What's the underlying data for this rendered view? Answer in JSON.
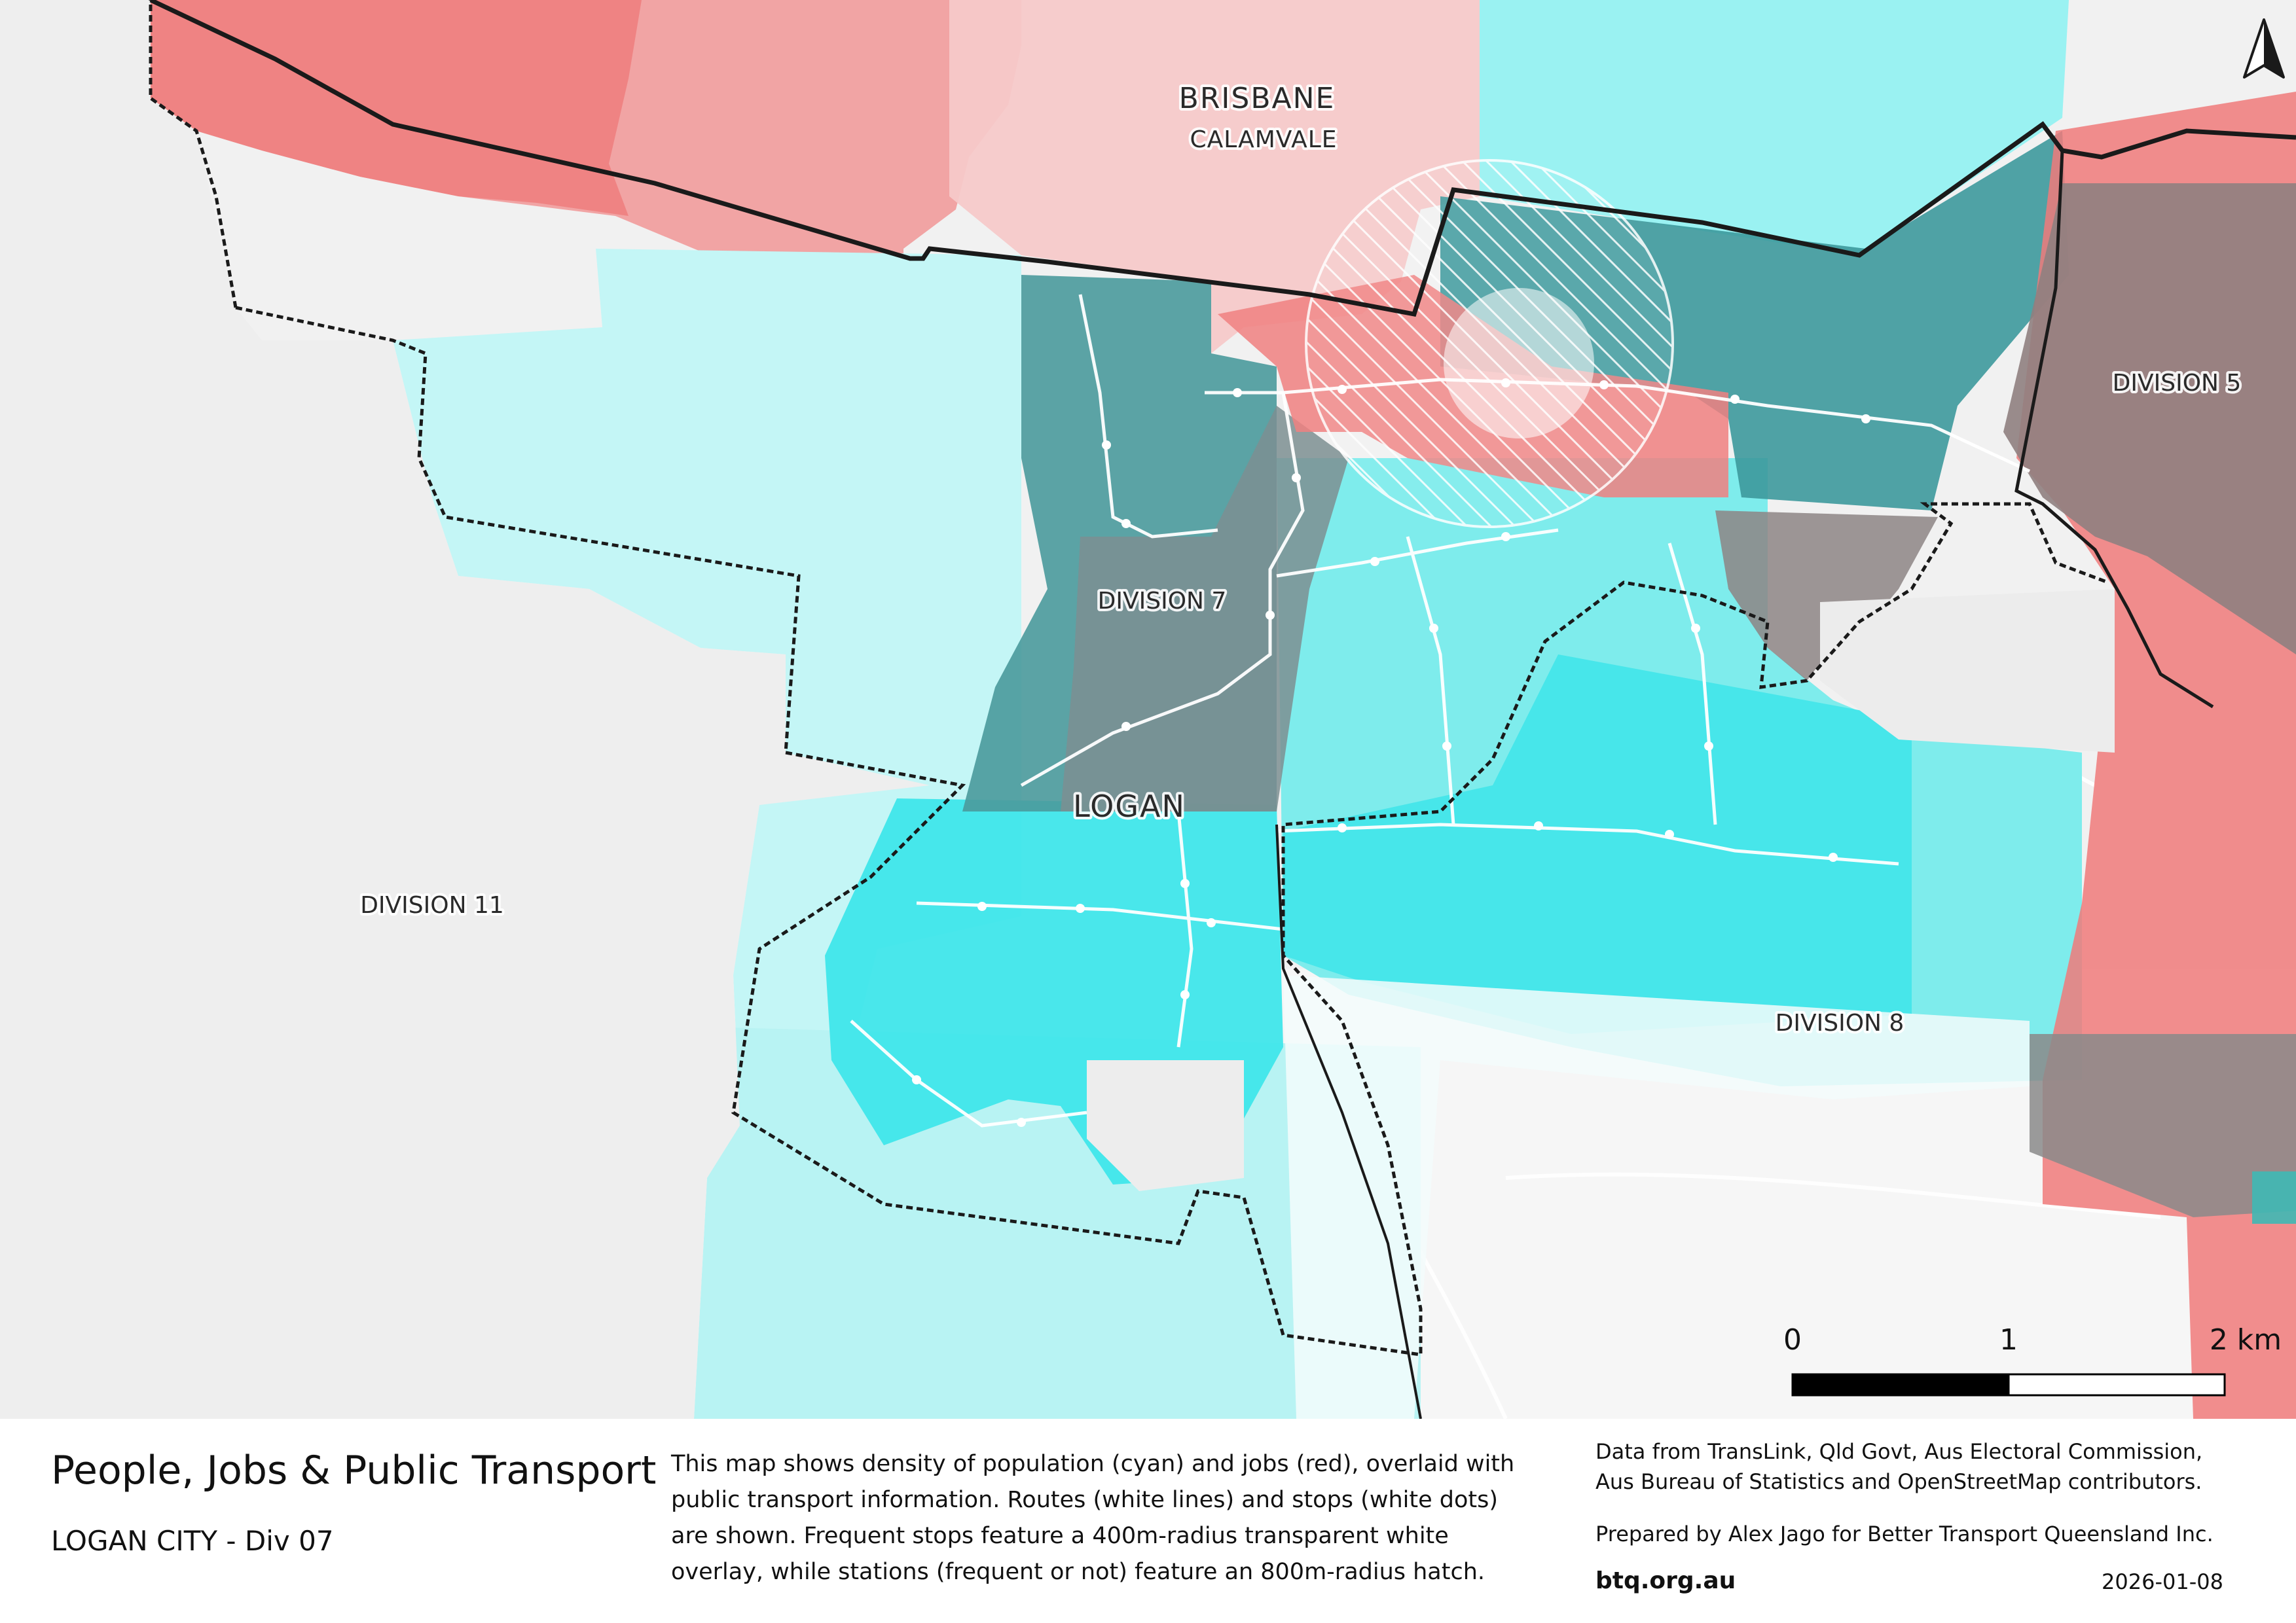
{
  "map": {
    "labels": {
      "brisbane": "BRISBANE",
      "calamvale": "CALAMVALE",
      "division_5": "DIVISION 5",
      "division_7": "DIVISION 7",
      "logan": "LOGAN",
      "division_11": "DIVISION 11",
      "division_8": "DIVISION 8"
    },
    "scale_bar": {
      "tick_0": "0",
      "tick_1": "1",
      "tick_2": "2 km"
    },
    "colors": {
      "population": "#33f0f0",
      "jobs": "#f26b6b",
      "overlap": "#5a7a7a",
      "base": "#f2f2f2"
    },
    "north_arrow_icon": "north-arrow-icon"
  },
  "footer": {
    "title": "People, Jobs & Public Transport",
    "subtitle": "LOGAN CITY - Div 07",
    "description_lines": [
      "This map shows density of population (cyan) and jobs (red), overlaid with",
      "public transport information. Routes (white lines) and stops (white dots)",
      "are shown. Frequent stops feature a 400m-radius transparent white",
      "overlay, while stations (frequent or not) feature an 800m-radius hatch."
    ],
    "credits_lines": [
      "Data from TransLink,  Qld Govt,  Aus Electoral Commission,",
      "Aus Bureau of Statistics and OpenStreetMap contributors."
    ],
    "prepared_by": "Prepared by Alex Jago for Better Transport Queensland Inc.",
    "website": "btq.org.au",
    "date": "2026-01-08"
  }
}
